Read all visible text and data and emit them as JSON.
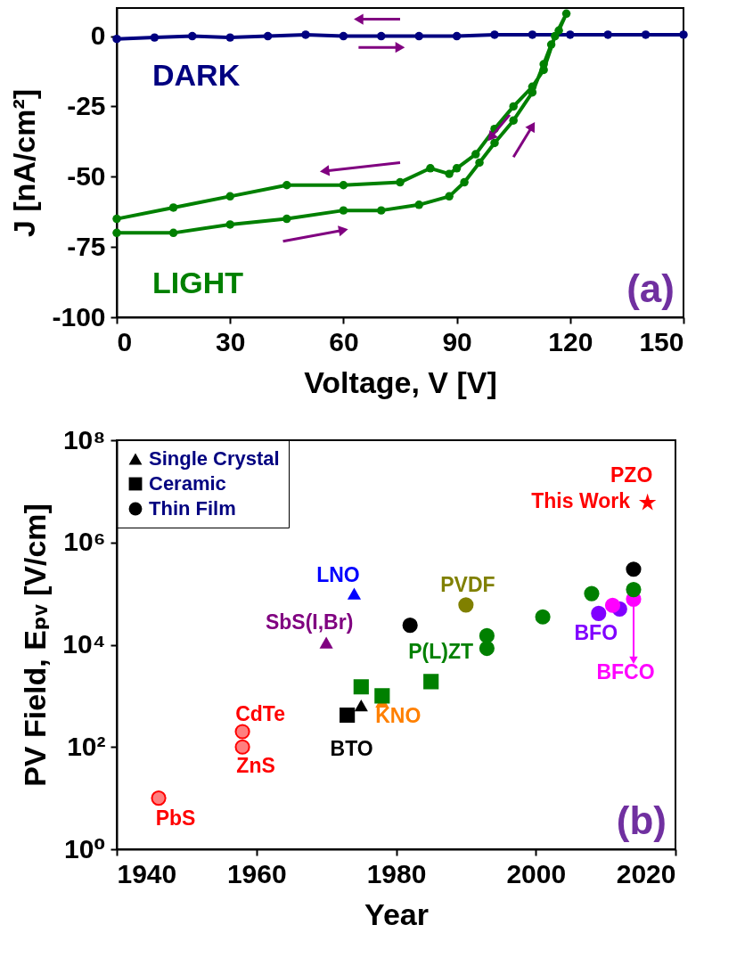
{
  "chart_data": [
    {
      "type": "line",
      "xlabel": "Voltage, V [V]",
      "ylabel": "J [nA/cm²]",
      "xlim": [
        0,
        150
      ],
      "ylim": [
        -100,
        10
      ],
      "xticks": [
        0,
        30,
        60,
        90,
        120,
        150
      ],
      "yticks": [
        -100,
        -75,
        -50,
        -25,
        0
      ],
      "marker": "circle",
      "line_style": "solid",
      "legend": false,
      "grid": false,
      "series": [
        {
          "name": "DARK",
          "color": "#000080",
          "x": [
            0,
            10,
            20,
            30,
            40,
            50,
            60,
            70,
            80,
            90,
            100,
            110,
            120,
            130,
            140,
            150
          ],
          "values": [
            -1,
            -0.5,
            0,
            -0.5,
            0,
            0.5,
            0,
            0,
            0,
            0,
            0.5,
            0.5,
            0.5,
            0.5,
            0.5,
            0.5
          ]
        },
        {
          "name": "LIGHT",
          "color": "#008000",
          "x": [
            0,
            15,
            30,
            45,
            60,
            70,
            80,
            88,
            92,
            96,
            100,
            105,
            110,
            113,
            115,
            117,
            119,
            116,
            113,
            110,
            105,
            100,
            95,
            90,
            88,
            83,
            75,
            60,
            45,
            30,
            15,
            0
          ],
          "values": [
            -70,
            -70,
            -67,
            -65,
            -62,
            -62,
            -60,
            -57,
            -52,
            -45,
            -38,
            -30,
            -20,
            -10,
            -3,
            2,
            8,
            0,
            -12,
            -18,
            -25,
            -33,
            -42,
            -47,
            -49,
            -47,
            -52,
            -53,
            -53,
            -57,
            -61,
            -65
          ]
        }
      ],
      "annotations": [
        "(a)"
      ]
    },
    {
      "type": "scatter",
      "xlabel": "Year",
      "ylabel": "PV Field, Eₚᵥ [V/cm]",
      "xlim": [
        1940,
        2020
      ],
      "ylim": [
        1,
        100000000
      ],
      "xticks": [
        1940,
        1960,
        1980,
        2000,
        2020
      ],
      "yticks": [
        {
          "value": 1,
          "label": "10⁰"
        },
        {
          "value": 100,
          "label": "10²"
        },
        {
          "value": 10000,
          "label": "10⁴"
        },
        {
          "value": 1000000,
          "label": "10⁶"
        },
        {
          "value": 100000000,
          "label": "10⁸"
        }
      ],
      "log": true,
      "legend": "top left",
      "grid": false,
      "series": [
        {
          "name": "Single Crystal",
          "color": "#000000",
          "marker": "triangle",
          "x": [
            1970,
            1974,
            1975,
            1978
          ],
          "values": [
            11000,
            100000,
            650,
            770
          ],
          "colors": [
            "#800080",
            "#0000ff",
            "#000000",
            "#ff8000"
          ]
        },
        {
          "name": "Ceramic",
          "color": "#000000",
          "marker": "square",
          "x": [
            1973,
            1975,
            1978,
            1985
          ],
          "values": [
            420,
            1500,
            1000,
            1900
          ],
          "colors": [
            "#000000",
            "#008000",
            "#008000",
            "#008000"
          ]
        },
        {
          "name": "Thin Film",
          "color": "#000000",
          "marker": "circle",
          "x": [
            1982,
            1990,
            1993,
            1993,
            2001,
            2008,
            2009,
            2012,
            2011,
            2014,
            2014,
            2014
          ],
          "values": [
            24000,
            60000,
            15000,
            8500,
            35000,
            100000,
            41000,
            50000,
            59000,
            78000,
            120000,
            300000
          ],
          "colors": [
            "#000000",
            "#808000",
            "#008000",
            "#008000",
            "#008000",
            "#008000",
            "#8000ff",
            "#8000ff",
            "#ff00ff",
            "#ff00ff",
            "#008000",
            "#000000"
          ]
        },
        {
          "color": "#ff0000",
          "marker": "circle",
          "x": [
            1946,
            1958,
            1958
          ],
          "values": [
            10,
            200,
            100
          ]
        },
        {
          "color": "#ff0000",
          "marker": "star",
          "x": [
            2016
          ],
          "values": [
            6000000
          ]
        }
      ],
      "annotations": [
        {
          "text": "PbS",
          "x": 1946,
          "y": 10
        },
        {
          "text": "CdTe",
          "x": 1958,
          "y": 200
        },
        {
          "text": "ZnS",
          "x": 1958,
          "y": 100
        },
        {
          "text": "LNO",
          "x": 1974,
          "y": 100000
        },
        {
          "text": "SbS(I,Br)",
          "x": 1970,
          "y": 11000
        },
        {
          "text": "BTO",
          "x": 1973,
          "y": 420
        },
        {
          "text": "KNO",
          "x": 1978,
          "y": 770
        },
        {
          "text": "P(L)ZT",
          "x": 1985,
          "y": 1900
        },
        {
          "text": "PVDF",
          "x": 1990,
          "y": 60000
        },
        {
          "text": "BFO",
          "x": 2009,
          "y": 41000
        },
        {
          "text": "BFCO",
          "x": 2014,
          "y": 78000
        },
        {
          "text": "PZO",
          "x": 2016,
          "y": 6000000
        },
        {
          "text": "This Work",
          "x": 2016,
          "y": 6000000
        },
        "(b)"
      ]
    }
  ]
}
